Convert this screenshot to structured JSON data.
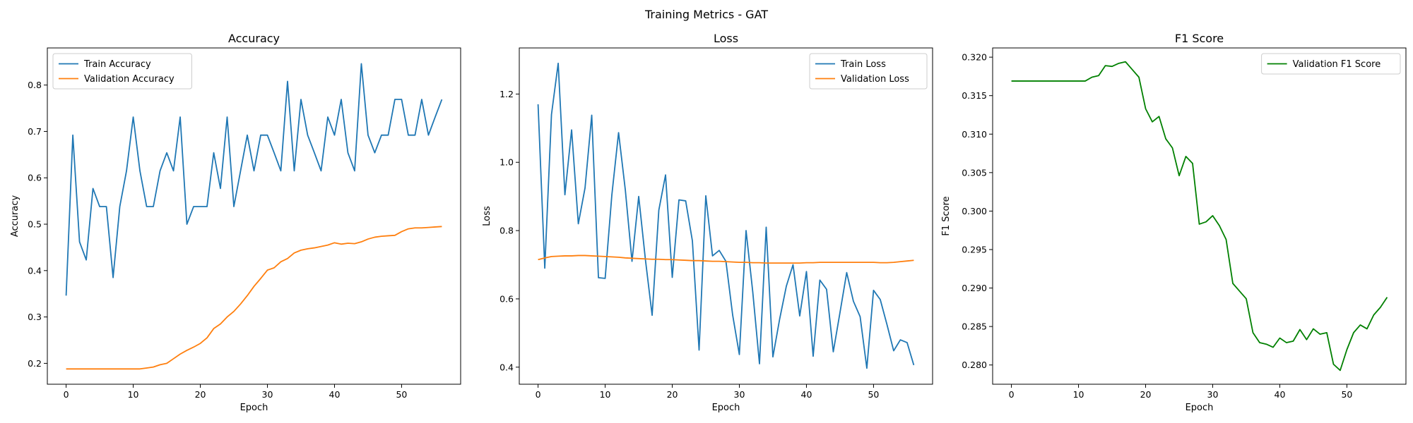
{
  "suptitle": "Training Metrics - GAT",
  "colors": {
    "train": "#1f77b4",
    "validation": "#ff7f0e",
    "f1": "#008000"
  },
  "chart_data": [
    {
      "type": "line",
      "title": "Accuracy",
      "xlabel": "Epoch",
      "ylabel": "Accuracy",
      "xlim": [
        -2.8,
        58.8
      ],
      "ylim": [
        0.155,
        0.88
      ],
      "xticks": [
        0,
        10,
        20,
        30,
        40,
        50
      ],
      "yticks": [
        0.2,
        0.3,
        0.4,
        0.5,
        0.6,
        0.7,
        0.8
      ],
      "ytick_labels": [
        "0.2",
        "0.3",
        "0.4",
        "0.5",
        "0.6",
        "0.7",
        "0.8"
      ],
      "legend_loc": "top-left",
      "series": [
        {
          "name": "Train Accuracy",
          "color": "#1f77b4",
          "x": [
            0,
            1,
            2,
            3,
            4,
            5,
            6,
            7,
            8,
            9,
            10,
            11,
            12,
            13,
            14,
            15,
            16,
            17,
            18,
            19,
            20,
            21,
            22,
            23,
            24,
            25,
            26,
            27,
            28,
            29,
            30,
            31,
            32,
            33,
            34,
            35,
            36,
            37,
            38,
            39,
            40,
            41,
            42,
            43,
            44,
            45,
            46,
            47,
            48,
            49,
            50,
            51,
            52,
            53,
            54,
            55,
            56
          ],
          "values": [
            0.346,
            0.692,
            0.462,
            0.423,
            0.577,
            0.538,
            0.538,
            0.385,
            0.538,
            0.615,
            0.731,
            0.615,
            0.538,
            0.538,
            0.615,
            0.654,
            0.615,
            0.731,
            0.5,
            0.538,
            0.538,
            0.538,
            0.654,
            0.577,
            0.731,
            0.538,
            0.615,
            0.692,
            0.615,
            0.692,
            0.692,
            0.654,
            0.615,
            0.808,
            0.615,
            0.769,
            0.692,
            0.654,
            0.615,
            0.731,
            0.692,
            0.769,
            0.654,
            0.615,
            0.846,
            0.692,
            0.654,
            0.692,
            0.692,
            0.769,
            0.769,
            0.692,
            0.692,
            0.769,
            0.692,
            0.731,
            0.769
          ]
        },
        {
          "name": "Validation Accuracy",
          "color": "#ff7f0e",
          "x": [
            0,
            1,
            2,
            3,
            4,
            5,
            6,
            7,
            8,
            9,
            10,
            11,
            12,
            13,
            14,
            15,
            16,
            17,
            18,
            19,
            20,
            21,
            22,
            23,
            24,
            25,
            26,
            27,
            28,
            29,
            30,
            31,
            32,
            33,
            34,
            35,
            36,
            37,
            38,
            39,
            40,
            41,
            42,
            43,
            44,
            45,
            46,
            47,
            48,
            49,
            50,
            51,
            52,
            53,
            54,
            55,
            56
          ],
          "values": [
            0.188,
            0.188,
            0.188,
            0.188,
            0.188,
            0.188,
            0.188,
            0.188,
            0.188,
            0.188,
            0.188,
            0.188,
            0.19,
            0.192,
            0.197,
            0.2,
            0.21,
            0.22,
            0.228,
            0.235,
            0.243,
            0.255,
            0.275,
            0.285,
            0.3,
            0.312,
            0.328,
            0.346,
            0.366,
            0.383,
            0.401,
            0.406,
            0.419,
            0.426,
            0.438,
            0.444,
            0.447,
            0.449,
            0.452,
            0.455,
            0.46,
            0.457,
            0.459,
            0.458,
            0.462,
            0.468,
            0.472,
            0.474,
            0.475,
            0.476,
            0.484,
            0.49,
            0.492,
            0.492,
            0.493,
            0.494,
            0.495
          ]
        }
      ]
    },
    {
      "type": "line",
      "title": "Loss",
      "xlabel": "Epoch",
      "ylabel": "Loss",
      "xlim": [
        -2.8,
        58.8
      ],
      "ylim": [
        0.35,
        1.335
      ],
      "xticks": [
        0,
        10,
        20,
        30,
        40,
        50
      ],
      "yticks": [
        0.4,
        0.6,
        0.8,
        1.0,
        1.2
      ],
      "ytick_labels": [
        "0.4",
        "0.6",
        "0.8",
        "1.0",
        "1.2"
      ],
      "legend_loc": "top-right",
      "series": [
        {
          "name": "Train Loss",
          "color": "#1f77b4",
          "x": [
            0,
            1,
            2,
            3,
            4,
            5,
            6,
            7,
            8,
            9,
            10,
            11,
            12,
            13,
            14,
            15,
            16,
            17,
            18,
            19,
            20,
            21,
            22,
            23,
            24,
            25,
            26,
            27,
            28,
            29,
            30,
            31,
            32,
            33,
            34,
            35,
            36,
            37,
            38,
            39,
            40,
            41,
            42,
            43,
            44,
            45,
            46,
            47,
            48,
            49,
            50,
            51,
            52,
            53,
            54,
            55,
            56
          ],
          "values": [
            1.17,
            0.69,
            1.14,
            1.29,
            0.905,
            1.095,
            0.82,
            0.925,
            1.138,
            0.662,
            0.66,
            0.905,
            1.087,
            0.92,
            0.71,
            0.9,
            0.715,
            0.552,
            0.86,
            0.963,
            0.663,
            0.89,
            0.887,
            0.77,
            0.45,
            0.902,
            0.726,
            0.742,
            0.71,
            0.553,
            0.437,
            0.8,
            0.62,
            0.41,
            0.81,
            0.43,
            0.54,
            0.637,
            0.7,
            0.55,
            0.68,
            0.432,
            0.655,
            0.628,
            0.445,
            0.56,
            0.677,
            0.593,
            0.548,
            0.397,
            0.625,
            0.598,
            0.525,
            0.448,
            0.48,
            0.472,
            0.406
          ]
        },
        {
          "name": "Validation Loss",
          "color": "#ff7f0e",
          "x": [
            0,
            1,
            2,
            3,
            4,
            5,
            6,
            7,
            8,
            9,
            10,
            11,
            12,
            13,
            14,
            15,
            16,
            17,
            18,
            19,
            20,
            21,
            22,
            23,
            24,
            25,
            26,
            27,
            28,
            29,
            30,
            31,
            32,
            33,
            34,
            35,
            36,
            37,
            38,
            39,
            40,
            41,
            42,
            43,
            44,
            45,
            46,
            47,
            48,
            49,
            50,
            51,
            52,
            53,
            54,
            55,
            56
          ],
          "values": [
            0.715,
            0.72,
            0.724,
            0.725,
            0.726,
            0.726,
            0.727,
            0.727,
            0.726,
            0.725,
            0.724,
            0.723,
            0.722,
            0.72,
            0.719,
            0.718,
            0.717,
            0.716,
            0.716,
            0.715,
            0.715,
            0.714,
            0.713,
            0.712,
            0.712,
            0.711,
            0.71,
            0.71,
            0.709,
            0.708,
            0.707,
            0.707,
            0.706,
            0.706,
            0.705,
            0.705,
            0.705,
            0.705,
            0.705,
            0.705,
            0.706,
            0.706,
            0.707,
            0.707,
            0.707,
            0.707,
            0.707,
            0.707,
            0.707,
            0.707,
            0.707,
            0.706,
            0.706,
            0.707,
            0.709,
            0.711,
            0.713
          ]
        }
      ]
    },
    {
      "type": "line",
      "title": "F1 Score",
      "xlabel": "Epoch",
      "ylabel": "F1 Score",
      "xlim": [
        -2.8,
        58.8
      ],
      "ylim": [
        0.2775,
        0.3212
      ],
      "xticks": [
        0,
        10,
        20,
        30,
        40,
        50
      ],
      "yticks": [
        0.28,
        0.285,
        0.29,
        0.295,
        0.3,
        0.305,
        0.31,
        0.315,
        0.32
      ],
      "ytick_labels": [
        "0.280",
        "0.285",
        "0.290",
        "0.295",
        "0.300",
        "0.305",
        "0.310",
        "0.315",
        "0.320"
      ],
      "legend_loc": "top-right",
      "series": [
        {
          "name": "Validation F1 Score",
          "color": "#008000",
          "x": [
            0,
            1,
            2,
            3,
            4,
            5,
            6,
            7,
            8,
            9,
            10,
            11,
            12,
            13,
            14,
            15,
            16,
            17,
            18,
            19,
            20,
            21,
            22,
            23,
            24,
            25,
            26,
            27,
            28,
            29,
            30,
            31,
            32,
            33,
            34,
            35,
            36,
            37,
            38,
            39,
            40,
            41,
            42,
            43,
            44,
            45,
            46,
            47,
            48,
            49,
            50,
            51,
            52,
            53,
            54,
            55,
            56
          ],
          "values": [
            0.3169,
            0.3169,
            0.3169,
            0.3169,
            0.3169,
            0.3169,
            0.3169,
            0.3169,
            0.3169,
            0.3169,
            0.3169,
            0.3169,
            0.3174,
            0.3176,
            0.3189,
            0.3188,
            0.3192,
            0.3194,
            0.3184,
            0.3174,
            0.3133,
            0.3116,
            0.3123,
            0.3094,
            0.3082,
            0.3046,
            0.3071,
            0.3062,
            0.2983,
            0.2986,
            0.2994,
            0.2981,
            0.2963,
            0.2906,
            0.2896,
            0.2886,
            0.2842,
            0.2829,
            0.2827,
            0.2823,
            0.2835,
            0.2829,
            0.2831,
            0.2846,
            0.2833,
            0.2847,
            0.284,
            0.2842,
            0.2801,
            0.2793,
            0.282,
            0.2842,
            0.2852,
            0.2847,
            0.2865,
            0.2875,
            0.2888
          ]
        }
      ]
    }
  ]
}
